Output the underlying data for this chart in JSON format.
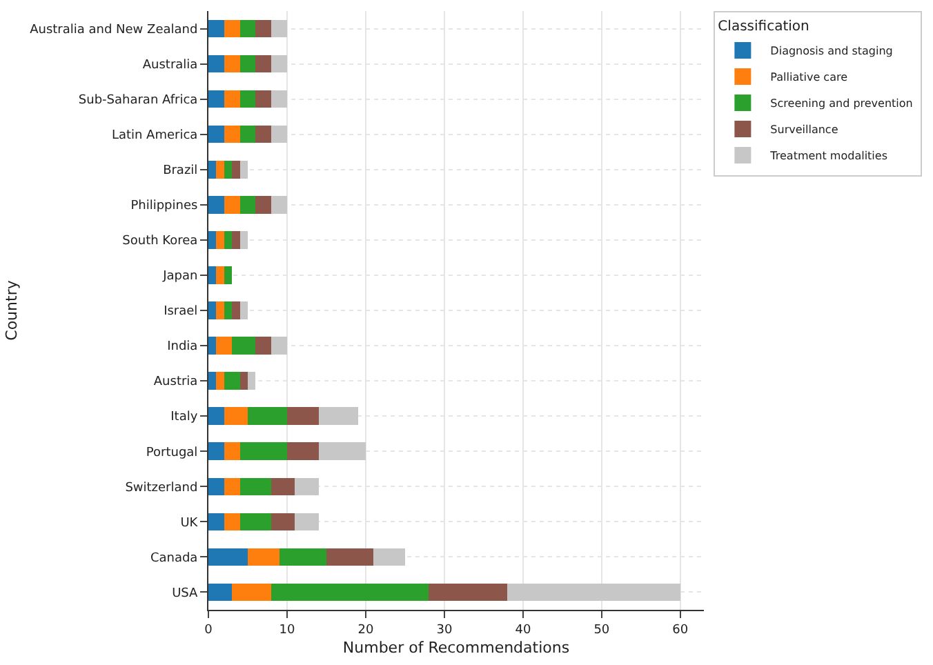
{
  "chart_data": {
    "type": "bar",
    "orientation": "horizontal",
    "stacked": true,
    "xlabel": "Number of Recommendations",
    "ylabel": "Country",
    "legend_title": "Classification",
    "legend": "top right",
    "grid": true,
    "categories": [
      "Australia and New Zealand",
      "Australia",
      "Sub-Saharan Africa",
      "Latin America",
      "Brazil",
      "Philippines",
      "South Korea",
      "Japan",
      "Israel",
      "India",
      "Austria",
      "Italy",
      "Portugal",
      "Switzerland",
      "UK",
      "Canada",
      "USA"
    ],
    "xlim": [
      0,
      63
    ],
    "xticks": [
      0,
      10,
      20,
      30,
      40,
      50,
      60
    ],
    "series": [
      {
        "name": "Diagnosis and staging",
        "color": "#1f77b4",
        "values": [
          2,
          2,
          2,
          2,
          1,
          2,
          1,
          1,
          1,
          1,
          1,
          2,
          2,
          2,
          2,
          5,
          3
        ]
      },
      {
        "name": "Palliative care",
        "color": "#ff7f0e",
        "values": [
          2,
          2,
          2,
          2,
          1,
          2,
          1,
          1,
          1,
          2,
          1,
          3,
          2,
          2,
          2,
          4,
          5
        ]
      },
      {
        "name": "Screening and prevention",
        "color": "#2ca02c",
        "values": [
          2,
          2,
          2,
          2,
          1,
          2,
          1,
          1,
          1,
          3,
          2,
          5,
          6,
          4,
          4,
          6,
          20
        ]
      },
      {
        "name": "Surveillance",
        "color": "#8c564b",
        "values": [
          2,
          2,
          2,
          2,
          1,
          2,
          1,
          0,
          1,
          2,
          1,
          4,
          4,
          3,
          3,
          6,
          10
        ]
      },
      {
        "name": "Treatment modalities",
        "color": "#c7c7c7",
        "values": [
          2,
          2,
          2,
          2,
          1,
          2,
          1,
          0,
          1,
          2,
          1,
          5,
          6,
          3,
          3,
          4,
          22
        ]
      }
    ]
  }
}
